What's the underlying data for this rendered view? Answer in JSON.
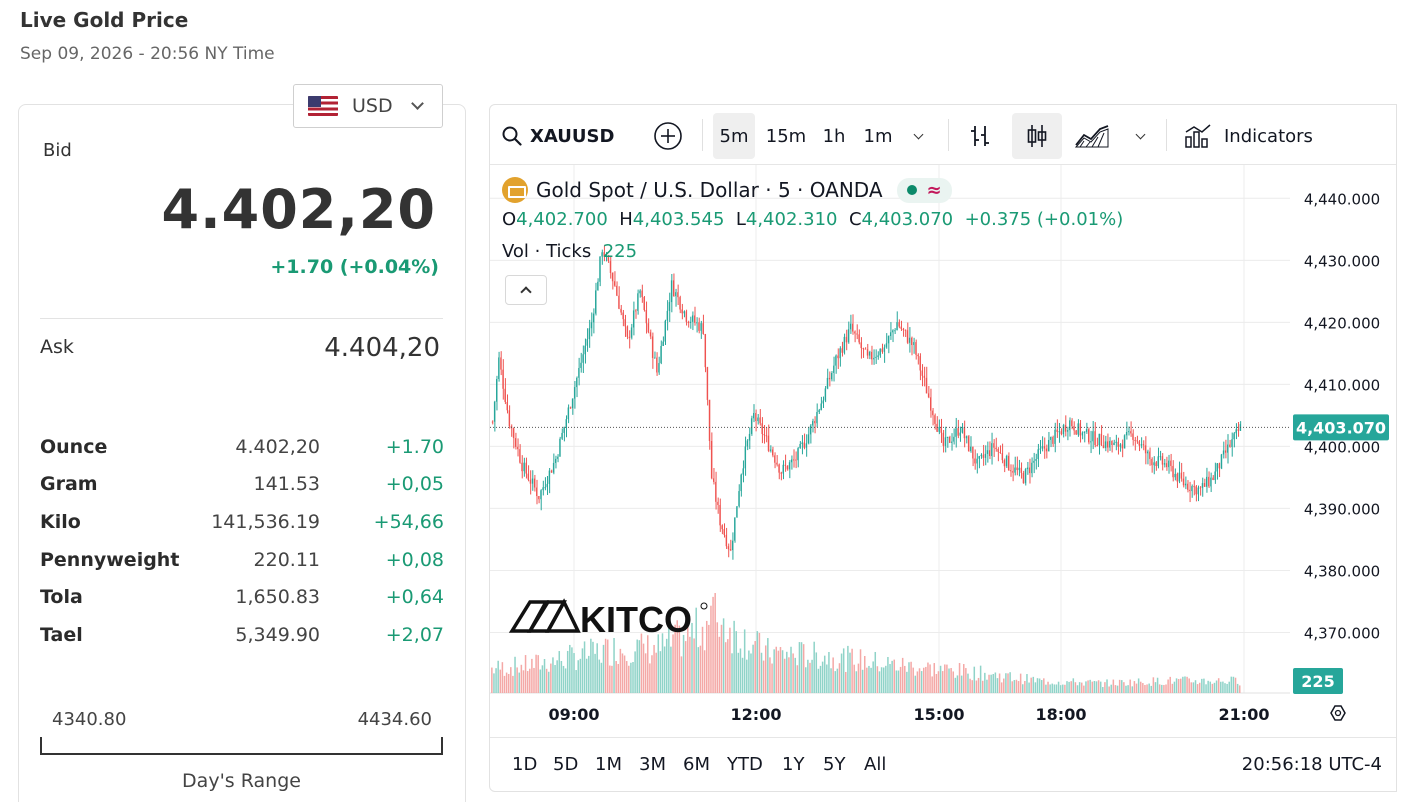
{
  "page": {
    "title": "Live Gold Price",
    "subtitle": "Sep 09, 2026 - 20:56 NY Time"
  },
  "currency": {
    "selected": "USD",
    "flag_icon": "us-flag-icon"
  },
  "bid": {
    "label": "Bid",
    "value": "4.402,20",
    "change": "+1.70 (+0.04%)"
  },
  "ask": {
    "label": "Ask",
    "value": "4.404,20"
  },
  "units": [
    {
      "name": "Ounce",
      "price": "4.402,20",
      "change": "+1.70"
    },
    {
      "name": "Gram",
      "price": "141.53",
      "change": "+0,05"
    },
    {
      "name": "Kilo",
      "price": "141,536.19",
      "change": "+54,66"
    },
    {
      "name": "Pennyweight",
      "price": "220.11",
      "change": "+0,08"
    },
    {
      "name": "Tola",
      "price": "1,650.83",
      "change": "+0,64"
    },
    {
      "name": "Tael",
      "price": "5,349.90",
      "change": "+2,07"
    }
  ],
  "days_range": {
    "low": "4340.80",
    "high": "4434.60",
    "label": "Day's Range"
  },
  "chart_widget": {
    "toolbar": {
      "symbol": "XAUUSD",
      "intervals": [
        "5m",
        "15m",
        "1h",
        "1m"
      ],
      "active_interval": "5m",
      "indicators_label": "Indicators"
    },
    "legend": {
      "title": "Gold Spot / U.S. Dollar · 5 · OANDA",
      "open_label": "O",
      "open": "4,402.700",
      "high_label": "H",
      "high": "4,403.545",
      "low_label": "L",
      "low": "4,402.310",
      "close_label": "C",
      "close": "4,403.070",
      "change": "+0.375 (+0.01%)",
      "volume_label": "Vol · Ticks",
      "volume_value": "225"
    },
    "watermark": "KITCO",
    "ranges": [
      "1D",
      "5D",
      "1M",
      "3M",
      "6M",
      "YTD",
      "1Y",
      "5Y",
      "All"
    ],
    "clock": "20:56:18 UTC-4"
  },
  "chart_data": {
    "type": "candlestick",
    "y_ticks": [
      "4,440.000",
      "4,430.000",
      "4,420.000",
      "4,410.000",
      "4,400.000",
      "4,390.000",
      "4,380.000",
      "4,370.000"
    ],
    "y_tick_values": [
      4440,
      4430,
      4420,
      4410,
      4400,
      4390,
      4380,
      4370
    ],
    "ylim": [
      4362.5,
      4444.4
    ],
    "x_ticks": [
      "09:00",
      "12:00",
      "15:00",
      "18:00",
      "21:00"
    ],
    "last_price_label": "4,403.070",
    "last_price": 4403.07,
    "last_volume_label": "225",
    "colors": {
      "up": "#26a69a",
      "down": "#ef5350",
      "up_volume": "#8fd3c8",
      "down_volume": "#f4a8a6",
      "grid": "#ececec"
    },
    "close_path": [
      {
        "t": 0,
        "p": 4404
      },
      {
        "t": 3,
        "p": 4414
      },
      {
        "t": 8,
        "p": 4404
      },
      {
        "t": 14,
        "p": 4397
      },
      {
        "t": 22,
        "p": 4392
      },
      {
        "t": 30,
        "p": 4398
      },
      {
        "t": 40,
        "p": 4411
      },
      {
        "t": 47,
        "p": 4420
      },
      {
        "t": 52,
        "p": 4432
      },
      {
        "t": 58,
        "p": 4426
      },
      {
        "t": 64,
        "p": 4417
      },
      {
        "t": 70,
        "p": 4425
      },
      {
        "t": 78,
        "p": 4412
      },
      {
        "t": 85,
        "p": 4426
      },
      {
        "t": 92,
        "p": 4421
      },
      {
        "t": 100,
        "p": 4419
      },
      {
        "t": 104,
        "p": 4395
      },
      {
        "t": 108,
        "p": 4388
      },
      {
        "t": 113,
        "p": 4383
      },
      {
        "t": 118,
        "p": 4396
      },
      {
        "t": 124,
        "p": 4405
      },
      {
        "t": 130,
        "p": 4401
      },
      {
        "t": 137,
        "p": 4396
      },
      {
        "t": 144,
        "p": 4398
      },
      {
        "t": 150,
        "p": 4402
      },
      {
        "t": 157,
        "p": 4408
      },
      {
        "t": 163,
        "p": 4414
      },
      {
        "t": 170,
        "p": 4419
      },
      {
        "t": 178,
        "p": 4414
      },
      {
        "t": 186,
        "p": 4416
      },
      {
        "t": 192,
        "p": 4420
      },
      {
        "t": 200,
        "p": 4416
      },
      {
        "t": 207,
        "p": 4408
      },
      {
        "t": 214,
        "p": 4400
      },
      {
        "t": 222,
        "p": 4403
      },
      {
        "t": 230,
        "p": 4397
      },
      {
        "t": 238,
        "p": 4400
      },
      {
        "t": 245,
        "p": 4397
      },
      {
        "t": 252,
        "p": 4395
      },
      {
        "t": 260,
        "p": 4399
      },
      {
        "t": 268,
        "p": 4402
      },
      {
        "t": 274,
        "p": 4404
      },
      {
        "t": 280,
        "p": 4402
      },
      {
        "t": 288,
        "p": 4401
      },
      {
        "t": 296,
        "p": 4400
      },
      {
        "t": 304,
        "p": 4402
      },
      {
        "t": 312,
        "p": 4398
      },
      {
        "t": 320,
        "p": 4397
      },
      {
        "t": 328,
        "p": 4394
      },
      {
        "t": 336,
        "p": 4393
      },
      {
        "t": 342,
        "p": 4395
      },
      {
        "t": 348,
        "p": 4399
      },
      {
        "t": 355,
        "p": 4403
      }
    ],
    "volume_profile": [
      {
        "t": 0,
        "v": 0.3
      },
      {
        "t": 20,
        "v": 0.35
      },
      {
        "t": 40,
        "v": 0.45
      },
      {
        "t": 60,
        "v": 0.55
      },
      {
        "t": 80,
        "v": 0.55
      },
      {
        "t": 100,
        "v": 0.8
      },
      {
        "t": 105,
        "v": 1.0
      },
      {
        "t": 115,
        "v": 0.75
      },
      {
        "t": 130,
        "v": 0.5
      },
      {
        "t": 160,
        "v": 0.45
      },
      {
        "t": 190,
        "v": 0.35
      },
      {
        "t": 230,
        "v": 0.25
      },
      {
        "t": 260,
        "v": 0.15
      },
      {
        "t": 290,
        "v": 0.12
      },
      {
        "t": 320,
        "v": 0.15
      },
      {
        "t": 355,
        "v": 0.15
      }
    ]
  }
}
